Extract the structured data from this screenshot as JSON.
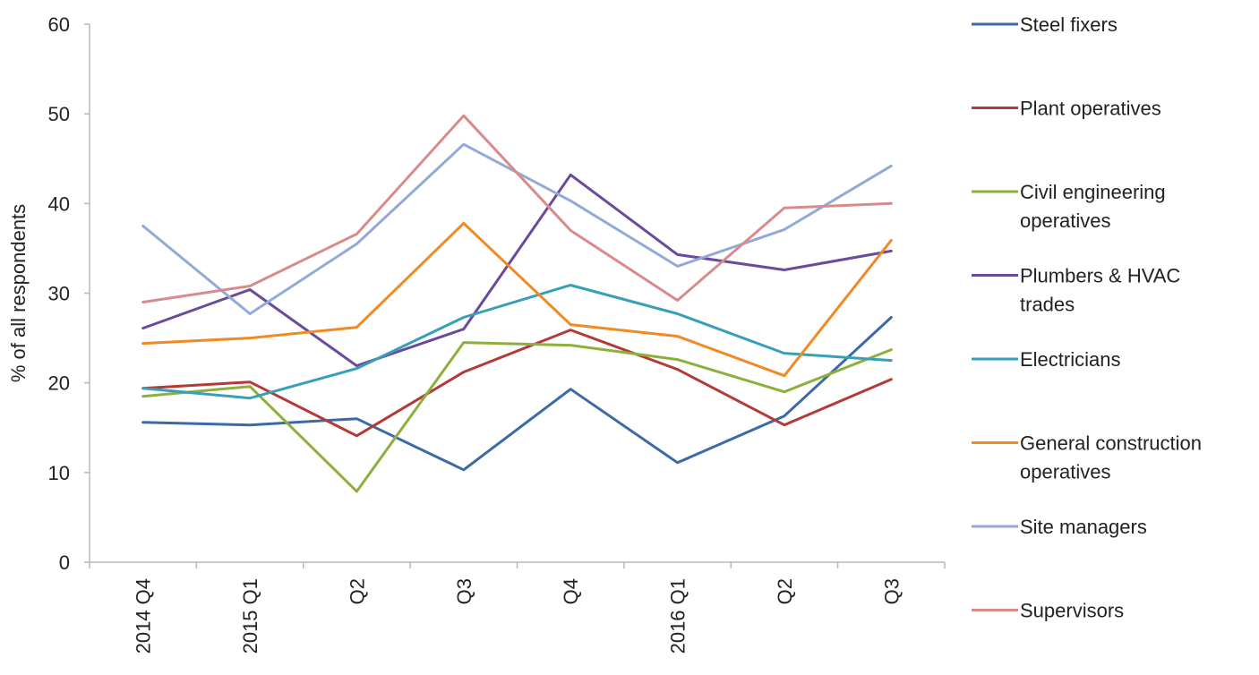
{
  "chart_data": {
    "type": "line",
    "title": "",
    "xlabel": "",
    "ylabel": "% of all respondents",
    "ylim": [
      0,
      60
    ],
    "yticks": [
      "0",
      "10",
      "20",
      "30",
      "40",
      "50",
      "60"
    ],
    "categories": [
      "2014 Q4",
      "2015 Q1",
      "Q2",
      "Q3",
      "Q4",
      "2016 Q1",
      "Q2",
      "Q3"
    ],
    "grid": false,
    "legend_position": "right",
    "series": [
      {
        "name": "Steel fixers",
        "color": "#3c6aa8",
        "values": [
          15.6,
          15.3,
          16.0,
          10.3,
          19.3,
          11.1,
          16.3,
          27.3
        ]
      },
      {
        "name": "Plant operatives",
        "color": "#b23a37",
        "values": [
          19.4,
          20.1,
          14.1,
          21.2,
          25.9,
          21.5,
          15.3,
          20.4
        ]
      },
      {
        "name": "Civil engineering operatives",
        "label_lines": [
          "Civil engineering",
          "operatives"
        ],
        "color": "#8cb03a",
        "values": [
          18.5,
          19.6,
          7.9,
          24.5,
          24.2,
          22.6,
          19.0,
          23.7
        ]
      },
      {
        "name": "Plumbers & HVAC trades",
        "label_lines": [
          "Plumbers & HVAC",
          "trades"
        ],
        "color": "#6a4a9c",
        "values": [
          26.1,
          30.4,
          21.9,
          26.0,
          43.2,
          34.3,
          32.6,
          34.7
        ]
      },
      {
        "name": "Electricians",
        "color": "#37a0b8",
        "values": [
          19.4,
          18.3,
          21.6,
          27.3,
          30.9,
          27.7,
          23.3,
          22.5
        ]
      },
      {
        "name": "General construction operatives",
        "label_lines": [
          "General construction",
          "operatives"
        ],
        "color": "#f08a24",
        "values": [
          24.4,
          25.0,
          26.2,
          37.8,
          26.5,
          25.2,
          20.8,
          35.9
        ]
      },
      {
        "name": "Site managers",
        "color": "#93aad8",
        "values": [
          37.5,
          27.7,
          35.5,
          46.6,
          40.3,
          33.0,
          37.1,
          44.2
        ]
      },
      {
        "name": "Supervisors",
        "color": "#d98a8a",
        "values": [
          29.0,
          30.8,
          36.6,
          49.8,
          37.0,
          29.2,
          39.5,
          40.0
        ]
      }
    ]
  }
}
